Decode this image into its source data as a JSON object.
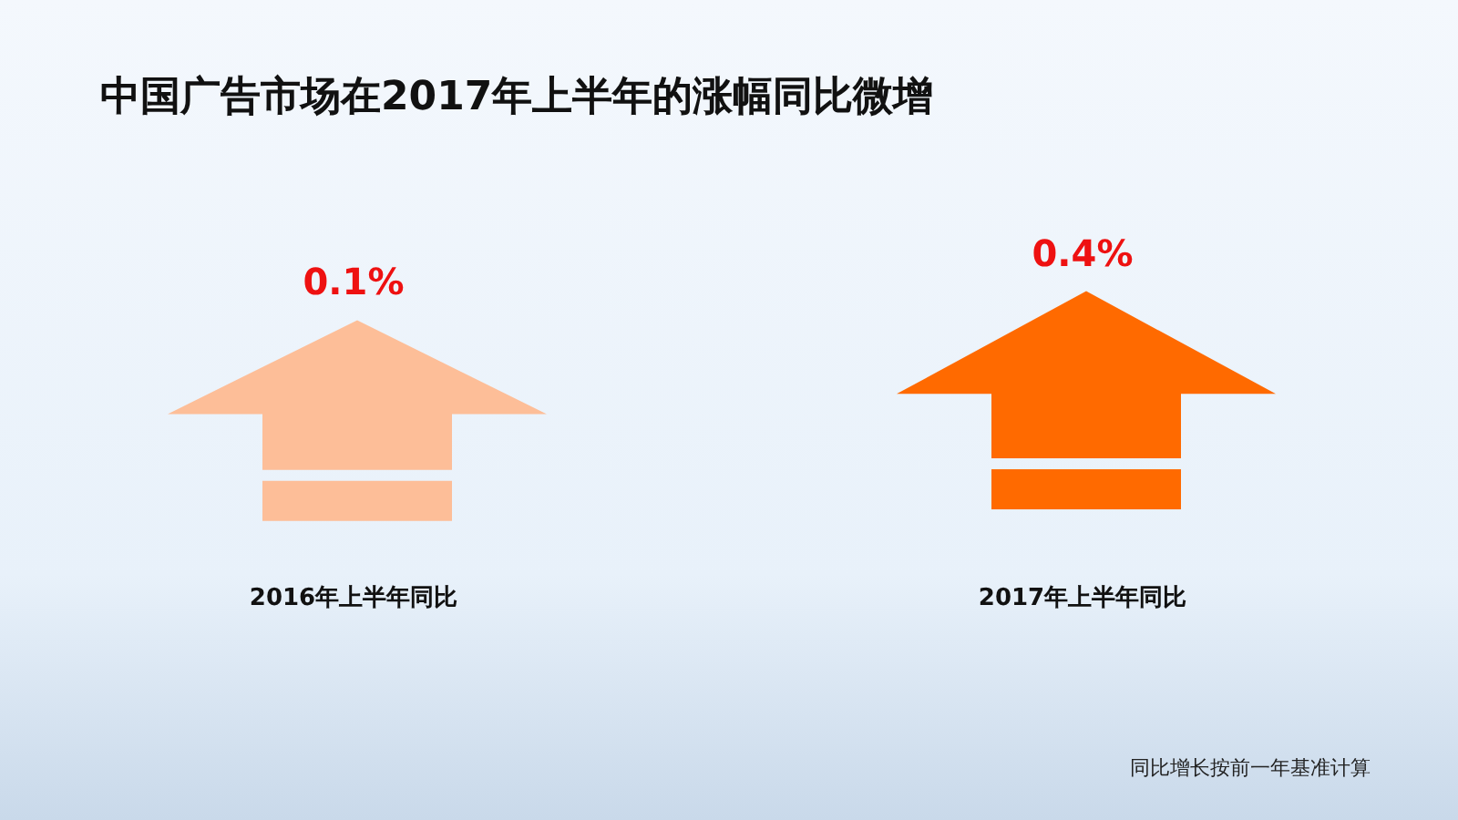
{
  "chart_data": {
    "type": "other",
    "title": "中国广告市场在2017年上半年的涨幅同比微增",
    "categories": [
      "2016年上半年同比",
      "2017年上半年同比"
    ],
    "values": [
      0.1,
      0.4
    ],
    "value_labels": [
      "0.1%",
      "0.4%"
    ],
    "colors": [
      "#fdbe98",
      "#ff6a00"
    ],
    "annotations": [
      "同比增长按前一年基准计算"
    ]
  }
}
